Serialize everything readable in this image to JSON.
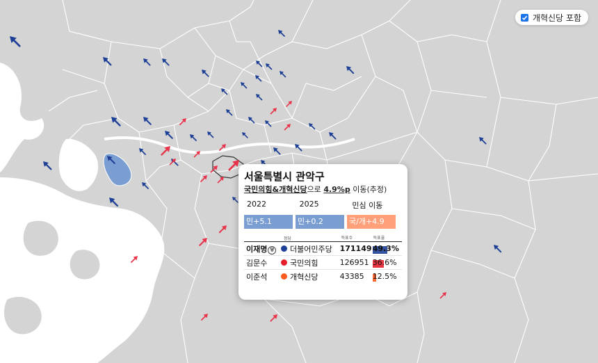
{
  "toggle": {
    "label": "개혁신당 포함",
    "checked": true
  },
  "tooltip": {
    "title": "서울특별시 관악구",
    "subtitle_pre": "국민의힘&개혁신당",
    "subtitle_mid": "으로 ",
    "subtitle_val": "4.9%p",
    "subtitle_post": " 이동(추정)",
    "years": [
      "2022",
      "2025",
      "민심 이동"
    ],
    "swings": [
      {
        "label": "민+5.1",
        "color": "#7b9ed2"
      },
      {
        "label": "민+0.2",
        "color": "#7b9ed2"
      },
      {
        "label": "국/개+4.9",
        "color": "#ffa07a"
      }
    ],
    "headers": {
      "party": "정당",
      "votes": "득표수",
      "share": "득표율"
    },
    "winner_badge": "당",
    "candidates": [
      {
        "name": "이재명",
        "party": "더불어민주당",
        "color": "#1d3f95",
        "votes": "171149",
        "share": "49.3%",
        "share_value": 49.3,
        "winner": true
      },
      {
        "name": "김문수",
        "party": "국민의힘",
        "color": "#e61e2b",
        "votes": "126951",
        "share": "36.6%",
        "share_value": 36.6,
        "winner": false
      },
      {
        "name": "이준석",
        "party": "개혁신당",
        "color": "#ff5a1e",
        "votes": "43385",
        "share": "12.5%",
        "share_value": 12.5,
        "winner": false
      }
    ]
  },
  "map": {
    "land_color": "#d4d4d4",
    "water_color": "#ffffff",
    "boundary_color": "#ffffff",
    "highlight_color": "#7b9ed2",
    "arrow_colors": {
      "democratic": "#1d3f95",
      "conservative": "#e8344a"
    },
    "arrow_icons": [
      "arrow-democratic-icon",
      "arrow-conservative-icon"
    ]
  }
}
